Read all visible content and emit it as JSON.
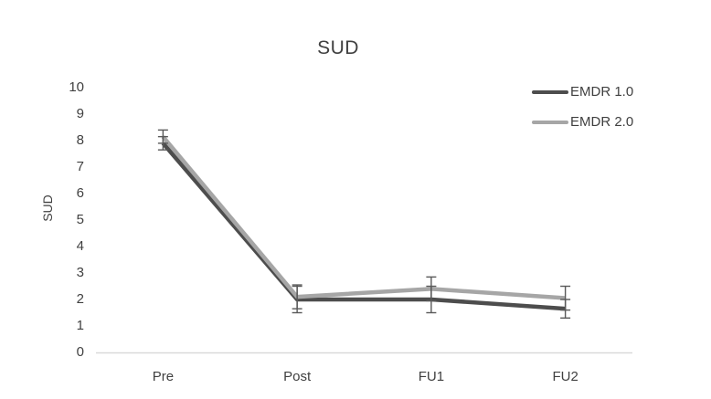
{
  "title": "SUD",
  "legend": [
    {
      "label": "EMDR 1.0",
      "color": "#4d4d4d"
    },
    {
      "label": "EMDR 2.0",
      "color": "#a6a6a6"
    }
  ],
  "chart_data": {
    "type": "line",
    "title": "SUD",
    "xlabel": "",
    "ylabel": "SUD",
    "categories": [
      "Pre",
      "Post",
      "FU1",
      "FU2"
    ],
    "series": [
      {
        "name": "EMDR 1.0",
        "color": "#4d4d4d",
        "values": [
          7.9,
          2.0,
          2.0,
          1.65
        ],
        "error_bars": [
          0.25,
          0.5,
          0.5,
          0.35
        ]
      },
      {
        "name": "EMDR 2.0",
        "color": "#a6a6a6",
        "values": [
          8.15,
          2.1,
          2.4,
          2.05
        ],
        "error_bars": [
          0.25,
          0.45,
          0.45,
          0.45
        ]
      }
    ],
    "ylim": [
      0,
      10
    ],
    "y_ticks": [
      10,
      9,
      8,
      7,
      6,
      5,
      4,
      3,
      2,
      1,
      0
    ],
    "grid": false,
    "legend_position": "top-right",
    "error_bar_color": "#595959",
    "axis_line_color": "#d9d9d9",
    "text_color": "#404040"
  }
}
